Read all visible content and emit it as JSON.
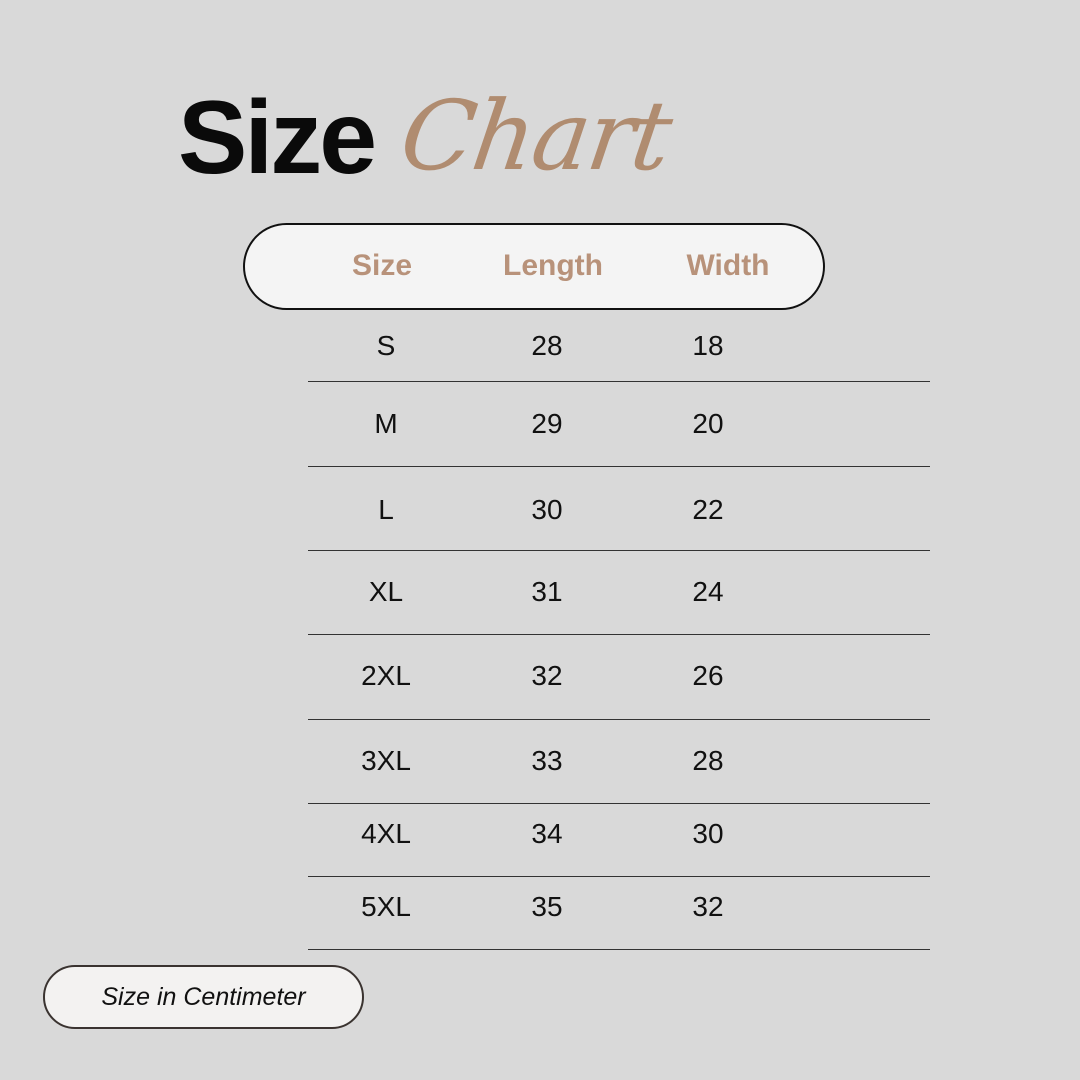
{
  "title": {
    "bold": "Size",
    "script": "Chart"
  },
  "colors": {
    "background": "#d9d9d9",
    "accent": "#b08c70",
    "text": "#111111"
  },
  "table": {
    "headers": [
      "Size",
      "Length",
      "Width"
    ],
    "rows": [
      [
        "S",
        "28",
        "18"
      ],
      [
        "M",
        "29",
        "20"
      ],
      [
        "L",
        "30",
        "22"
      ],
      [
        "XL",
        "31",
        "24"
      ],
      [
        "2XL",
        "32",
        "26"
      ],
      [
        "3XL",
        "33",
        "28"
      ],
      [
        "4XL",
        "34",
        "30"
      ],
      [
        "5XL",
        "35",
        "32"
      ]
    ]
  },
  "footer": {
    "unit_note": "Size in Centimeter"
  }
}
